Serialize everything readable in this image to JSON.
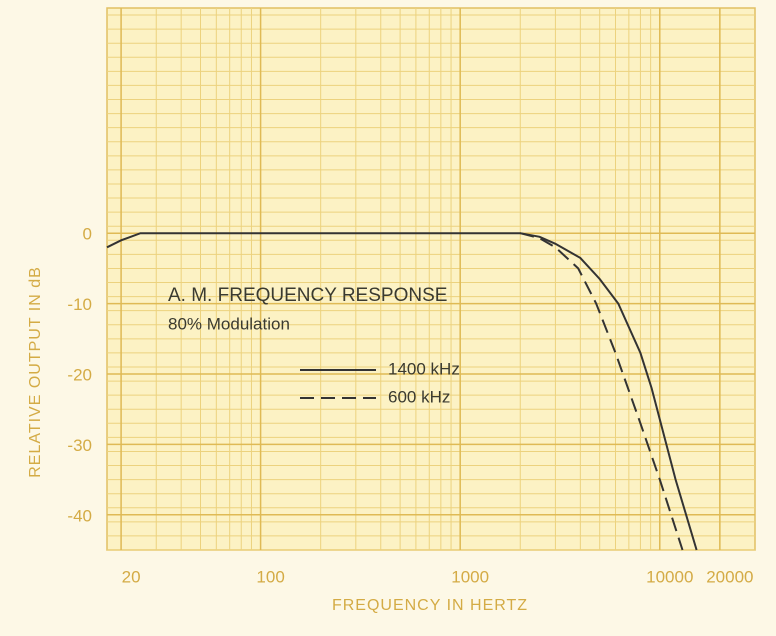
{
  "chart_data": {
    "type": "line",
    "title": "A. M. FREQUENCY RESPONSE",
    "subtitle": "80% Modulation",
    "x_label": "FREQUENCY IN HERTZ",
    "y_label": "RELATIVE OUTPUT IN dB",
    "x_scale": "log",
    "xlim": [
      17,
      30000
    ],
    "ylim": [
      -45,
      32
    ],
    "xticks": [
      20,
      100,
      1000,
      10000,
      20000
    ],
    "yticks": [
      0,
      -10,
      -20,
      -30,
      -40
    ],
    "grid": true,
    "series": [
      {
        "name": "1400 kHz",
        "color": "#333333",
        "dash": "solid",
        "x": [
          17,
          20,
          25,
          30,
          100,
          1000,
          2000,
          2500,
          3000,
          4000,
          5000,
          6200,
          8000,
          9100,
          12000,
          15300
        ],
        "values": [
          -2,
          -1,
          0,
          0,
          0,
          0,
          0,
          -0.5,
          -1.5,
          -3.5,
          -6.5,
          -10,
          -17,
          -22,
          -35,
          -45
        ]
      },
      {
        "name": "600 kHz",
        "color": "#333333",
        "dash": "dashed",
        "x": [
          2000,
          2500,
          3000,
          3900,
          4800,
          6000,
          8000,
          10000,
          13000
        ],
        "values": [
          0,
          -0.7,
          -2,
          -5,
          -10,
          -17,
          -27,
          -35,
          -45
        ]
      }
    ]
  }
}
